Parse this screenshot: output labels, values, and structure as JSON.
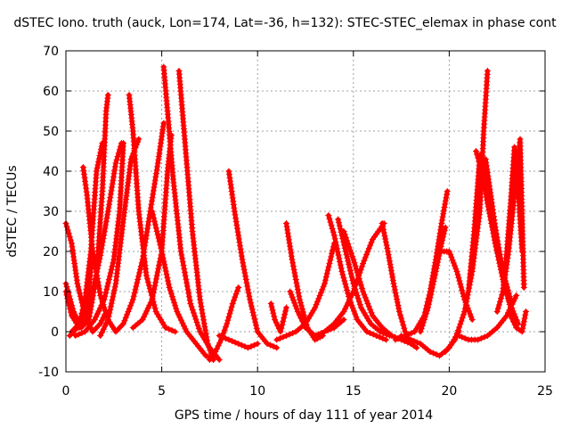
{
  "chart_data": {
    "type": "scatter",
    "title": "dSTEC Iono. truth (auck, Lon=174, Lat=-36, h=132): STEC-STEC_elemax in phase cont",
    "xlabel": "GPS time / hours of day 111 of year 2014",
    "ylabel": "dSTEC  / TECUs",
    "xlim": [
      0,
      25
    ],
    "ylim": [
      -10,
      70
    ],
    "xticks": [
      0,
      5,
      10,
      15,
      20,
      25
    ],
    "yticks": [
      -10,
      0,
      10,
      20,
      30,
      40,
      50,
      60,
      70
    ],
    "grid": true,
    "legend": "none",
    "marker": "+",
    "color": "#ff0000",
    "series": [
      {
        "x": [
          0.0,
          0.4,
          0.8,
          1.2,
          1.6,
          1.9,
          2.1,
          2.2
        ],
        "y": [
          12,
          5,
          1,
          3,
          14,
          35,
          55,
          59
        ]
      },
      {
        "x": [
          0.0,
          0.3,
          0.6,
          1.0,
          1.4,
          1.8,
          2.1
        ],
        "y": [
          27,
          22,
          12,
          4,
          0,
          2,
          5
        ]
      },
      {
        "x": [
          0.0,
          0.3,
          0.7,
          1.1,
          1.4
        ],
        "y": [
          10,
          4,
          1,
          6,
          20
        ]
      },
      {
        "x": [
          0.3,
          0.7,
          1.0,
          1.3,
          1.6,
          1.9
        ],
        "y": [
          0,
          2,
          8,
          20,
          40,
          47
        ]
      },
      {
        "x": [
          0.9,
          1.1,
          1.4,
          1.8,
          2.2,
          2.6
        ],
        "y": [
          41,
          34,
          20,
          9,
          3,
          0
        ]
      },
      {
        "x": [
          0.2,
          0.6,
          1.0,
          1.4,
          1.8,
          2.2,
          2.6,
          2.9
        ],
        "y": [
          -1,
          1,
          4,
          10,
          19,
          30,
          42,
          47
        ]
      },
      {
        "x": [
          1.8,
          2.2,
          2.6,
          3.0,
          3.4,
          3.8
        ],
        "y": [
          -1,
          3,
          12,
          28,
          43,
          48
        ]
      },
      {
        "x": [
          0.5,
          1.0,
          1.5,
          2.0,
          2.5,
          2.8,
          3.0
        ],
        "y": [
          -1,
          0,
          3,
          8,
          18,
          30,
          47
        ]
      },
      {
        "x": [
          3.3,
          3.5,
          3.8,
          4.2,
          4.7,
          5.2,
          5.7
        ],
        "y": [
          59,
          50,
          30,
          14,
          5,
          1,
          0
        ]
      },
      {
        "x": [
          2.6,
          3.0,
          3.5,
          4.0,
          4.4,
          4.8,
          5.1
        ],
        "y": [
          0,
          2,
          8,
          18,
          30,
          42,
          52
        ]
      },
      {
        "x": [
          5.1,
          5.3,
          5.6,
          6.0,
          6.5,
          7.0,
          7.5,
          8.0
        ],
        "y": [
          66,
          55,
          38,
          20,
          7,
          0,
          -4,
          -7
        ]
      },
      {
        "x": [
          5.9,
          6.2,
          6.6,
          7.0,
          7.4,
          7.7
        ],
        "y": [
          65,
          48,
          25,
          8,
          -3,
          -7
        ]
      },
      {
        "x": [
          3.5,
          4.0,
          4.5,
          5.0,
          5.3,
          5.5
        ],
        "y": [
          1,
          3,
          8,
          20,
          40,
          49
        ]
      },
      {
        "x": [
          4.5,
          5.0,
          5.4,
          5.8,
          6.3,
          6.8,
          7.3,
          7.7
        ],
        "y": [
          30,
          20,
          11,
          5,
          0,
          -3,
          -6,
          -7
        ]
      },
      {
        "x": [
          7.5,
          7.8,
          8.1,
          8.4,
          8.7,
          9.0
        ],
        "y": [
          -7,
          -5,
          -2,
          2,
          7,
          11
        ]
      },
      {
        "x": [
          8.5,
          8.8,
          9.2,
          9.6,
          10.0,
          10.5,
          11.0
        ],
        "y": [
          40,
          30,
          18,
          8,
          0,
          -3,
          -4
        ]
      },
      {
        "x": [
          8.0,
          8.5,
          9.0,
          9.5,
          10.0
        ],
        "y": [
          -1,
          -2,
          -3,
          -4,
          -3
        ]
      },
      {
        "x": [
          10.7,
          10.9,
          11.2,
          11.5
        ],
        "y": [
          7,
          3,
          0,
          6
        ]
      },
      {
        "x": [
          11.5,
          11.8,
          12.2,
          12.6,
          13.0,
          13.4
        ],
        "y": [
          27,
          18,
          8,
          1,
          -2,
          -1
        ]
      },
      {
        "x": [
          11.0,
          11.5,
          12.0,
          12.5,
          13.0,
          13.5,
          14.0
        ],
        "y": [
          -2,
          -1,
          0,
          2,
          6,
          12,
          22
        ]
      },
      {
        "x": [
          11.7,
          12.1,
          12.5,
          13.0,
          13.5,
          14.0,
          14.5
        ],
        "y": [
          10,
          5,
          1,
          -1,
          0,
          1,
          3
        ]
      },
      {
        "x": [
          13.7,
          14.0,
          14.4,
          14.8,
          15.2,
          15.7,
          16.2,
          16.7
        ],
        "y": [
          29,
          24,
          15,
          8,
          3,
          0,
          -1,
          -2
        ]
      },
      {
        "x": [
          14.2,
          14.6,
          15.0,
          15.4,
          15.9,
          16.4,
          16.9
        ],
        "y": [
          28,
          20,
          12,
          6,
          2,
          0,
          -1
        ]
      },
      {
        "x": [
          13.0,
          13.5,
          14.0,
          14.5,
          15.0,
          15.5,
          16.0,
          16.6
        ],
        "y": [
          -1,
          0,
          2,
          5,
          10,
          17,
          23,
          27
        ]
      },
      {
        "x": [
          16.5,
          16.8,
          17.1,
          17.4,
          17.7,
          18.0,
          18.3
        ],
        "y": [
          27,
          20,
          12,
          5,
          0,
          -3,
          -4
        ]
      },
      {
        "x": [
          14.5,
          15.0,
          15.5,
          16.0,
          16.5,
          17.0,
          17.5,
          18.0
        ],
        "y": [
          25,
          18,
          10,
          4,
          1,
          -1,
          -2,
          -3
        ]
      },
      {
        "x": [
          17.2,
          17.7,
          18.2,
          18.7,
          19.0,
          19.3,
          19.6,
          19.9
        ],
        "y": [
          -2,
          -1,
          0,
          4,
          10,
          18,
          27,
          35
        ]
      },
      {
        "x": [
          18.5,
          18.9,
          19.3,
          19.6,
          19.8
        ],
        "y": [
          0,
          6,
          15,
          22,
          26
        ]
      },
      {
        "x": [
          17.5,
          18.0,
          18.5,
          19.0,
          19.5,
          20.0,
          20.5
        ],
        "y": [
          -1,
          -2,
          -3,
          -5,
          -6,
          -4,
          0
        ]
      },
      {
        "x": [
          19.6,
          20.0,
          20.4,
          20.8,
          21.2
        ],
        "y": [
          20,
          20,
          15,
          8,
          3
        ]
      },
      {
        "x": [
          19.8,
          20.3,
          20.8,
          21.2,
          21.6,
          21.8,
          22.0
        ],
        "y": [
          -5,
          -2,
          5,
          15,
          30,
          50,
          65
        ]
      },
      {
        "x": [
          21.0,
          21.3,
          21.6,
          22.0,
          22.4,
          22.8,
          23.2
        ],
        "y": [
          10,
          25,
          44,
          38,
          26,
          15,
          8
        ]
      },
      {
        "x": [
          21.4,
          21.7,
          22.0,
          22.4,
          22.8,
          23.2,
          23.6
        ],
        "y": [
          45,
          40,
          32,
          22,
          13,
          6,
          2
        ]
      },
      {
        "x": [
          21.9,
          22.2,
          22.5,
          22.8,
          23.1,
          23.5
        ],
        "y": [
          43,
          33,
          22,
          14,
          8,
          3
        ]
      },
      {
        "x": [
          20.5,
          21.0,
          21.5,
          22.0,
          22.5,
          23.0,
          23.5
        ],
        "y": [
          -1,
          -2,
          -2,
          -1,
          1,
          4,
          9
        ]
      },
      {
        "x": [
          22.8,
          23.0,
          23.2,
          23.4,
          23.6,
          23.8
        ],
        "y": [
          10,
          20,
          32,
          46,
          35,
          20
        ]
      },
      {
        "x": [
          22.5,
          22.8,
          23.1,
          23.4,
          23.7,
          23.9
        ],
        "y": [
          5,
          10,
          20,
          34,
          48,
          11
        ]
      },
      {
        "x": [
          23.2,
          23.5,
          23.8,
          24.0
        ],
        "y": [
          4,
          1,
          0,
          5
        ]
      }
    ]
  }
}
